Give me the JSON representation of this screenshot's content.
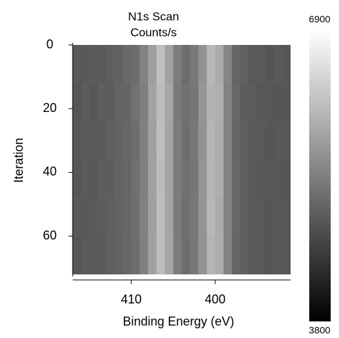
{
  "chart_data": {
    "type": "heatmap",
    "title": "N1s Scan",
    "subtitle": "Counts/s",
    "x_label": "Binding Energy (eV)",
    "y_label": "Iteration",
    "x": [
      416.5,
      415.5,
      414.5,
      413.5,
      412.5,
      411.5,
      410.5,
      409.5,
      408.5,
      407.5,
      406.5,
      405.5,
      404.5,
      403.5,
      402.5,
      401.5,
      400.5,
      399.5,
      398.5,
      397.5,
      396.5,
      395.5,
      394.5,
      393.5,
      392.5,
      391.5
    ],
    "y": [
      6,
      18,
      30,
      42,
      54,
      66
    ],
    "z": [
      [
        4870,
        4880,
        4910,
        4900,
        4960,
        4980,
        5070,
        5130,
        5380,
        5720,
        6120,
        5770,
        5320,
        5130,
        5270,
        5580,
        6030,
        5870,
        5420,
        5030,
        4970,
        4880,
        4900,
        4830,
        4890,
        4860
      ],
      [
        4830,
        4920,
        4860,
        4940,
        4930,
        5020,
        5030,
        5170,
        5330,
        5780,
        6080,
        5830,
        5280,
        5170,
        5230,
        5620,
        5970,
        5930,
        5380,
        5070,
        4930,
        4920,
        4860,
        4870,
        4850,
        4840
      ],
      [
        4860,
        4890,
        4890,
        4910,
        4970,
        4990,
        5060,
        5140,
        5360,
        5740,
        6110,
        5790,
        5310,
        5140,
        5260,
        5590,
        6010,
        5890,
        5410,
        5040,
        4960,
        4890,
        4890,
        4840,
        4880,
        4870
      ],
      [
        4840,
        4910,
        4870,
        4930,
        4940,
        5010,
        5040,
        5160,
        5340,
        5760,
        6090,
        5810,
        5290,
        5160,
        5240,
        5610,
        5990,
        5910,
        5390,
        5060,
        4940,
        4910,
        4870,
        4860,
        4860,
        4830
      ],
      [
        4880,
        4870,
        4900,
        4920,
        4950,
        5000,
        5050,
        5150,
        5370,
        5730,
        6100,
        5800,
        5300,
        5150,
        5250,
        5600,
        6020,
        5880,
        5400,
        5050,
        4950,
        4900,
        4880,
        4850,
        4870,
        4850
      ],
      [
        4850,
        4900,
        4880,
        4910,
        4960,
        4990,
        5060,
        5140,
        5350,
        5750,
        6090,
        5820,
        5310,
        5140,
        5260,
        5590,
        5990,
        5900,
        5410,
        5040,
        4960,
        4890,
        4890,
        4850,
        4860,
        4860
      ]
    ],
    "xlim": [
      417,
      391
    ],
    "xticks": [
      410,
      400
    ],
    "ylim": [
      0,
      72
    ],
    "yticks": [
      0,
      20,
      40,
      60
    ],
    "zlim": [
      3800,
      6900
    ],
    "zticks": [
      3800,
      6900
    ],
    "colormap": [
      "#000000",
      "#ffffff"
    ]
  }
}
